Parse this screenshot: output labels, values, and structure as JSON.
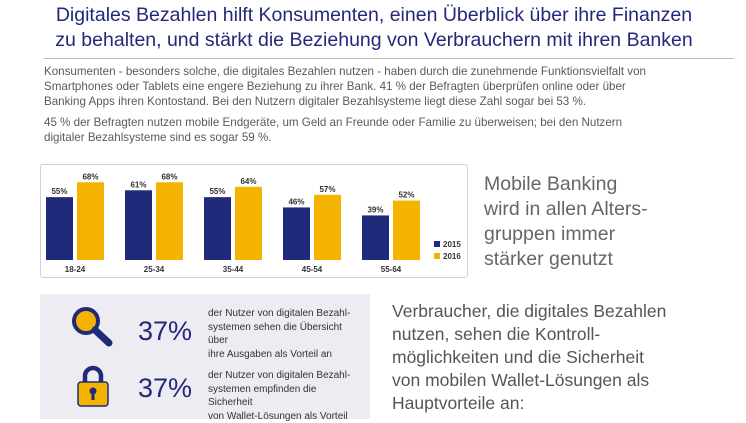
{
  "title_lines": [
    "Digitales Bezahlen hilft Konsumenten, einen Überblick über ihre Finanzen",
    "zu behalten, und stärkt die Beziehung von Verbrauchern mit ihren Banken"
  ],
  "paragraph1_lines": [
    "Konsumenten - besonders solche, die digitales Bezahlen nutzen - haben durch die zunehmende Funktionsvielfalt von",
    "Smartphones oder Tablets eine engere Beziehung zu ihrer Bank. 41 % der Befragten überprüfen online oder über",
    "Banking Apps ihren Kontostand. Bei den Nutzern digitaler Bezahlsysteme liegt diese Zahl sogar bei 53 %."
  ],
  "paragraph2_lines": [
    "45 % der Befragten nutzen mobile Endgeräte, um Geld an Freunde oder Familie zu überweisen; bei den Nutzern",
    "digitaler Bezahlsysteme sind es sogar 59 %."
  ],
  "chart_data": {
    "type": "bar",
    "title": "",
    "xlabel": "",
    "ylabel": "",
    "categories": [
      "18-24",
      "25-34",
      "35-44",
      "45-54",
      "55-64"
    ],
    "series": [
      {
        "name": "2015",
        "values": [
          55,
          61,
          55,
          46,
          39
        ],
        "color": "#1f2a7a"
      },
      {
        "name": "2016",
        "values": [
          68,
          68,
          64,
          57,
          52
        ],
        "color": "#f5b301"
      }
    ],
    "ylim": [
      0,
      70
    ],
    "value_suffix": "%",
    "legend_position": "right"
  },
  "mobile_banking_lines": [
    "Mobile Banking",
    "wird in allen Alters-",
    "gruppen immer",
    "stärker genutzt"
  ],
  "stats": [
    {
      "icon": "magnifier-icon",
      "percent": "37%",
      "text_lines": [
        "der Nutzer von digitalen Bezahl-",
        "systemen sehen die Übersicht über",
        "ihre Ausgaben als Vorteil an"
      ]
    },
    {
      "icon": "padlock-icon",
      "percent": "37%",
      "text_lines": [
        "der Nutzer von digitalen Bezahl-",
        "systemen empfinden die Sicherheit",
        "von Wallet-Lösungen als Vorteil"
      ]
    }
  ],
  "right_text_lines": [
    "Verbraucher, die digitales Bezahlen",
    "nutzen, sehen die Kontroll-",
    "möglichkeiten und die Sicherheit",
    "von mobilen Wallet-Lösungen als",
    "Hauptvorteile an:"
  ],
  "colors": {
    "navy": "#1f2a7a",
    "yellow": "#f5b301",
    "title": "#23287a"
  }
}
